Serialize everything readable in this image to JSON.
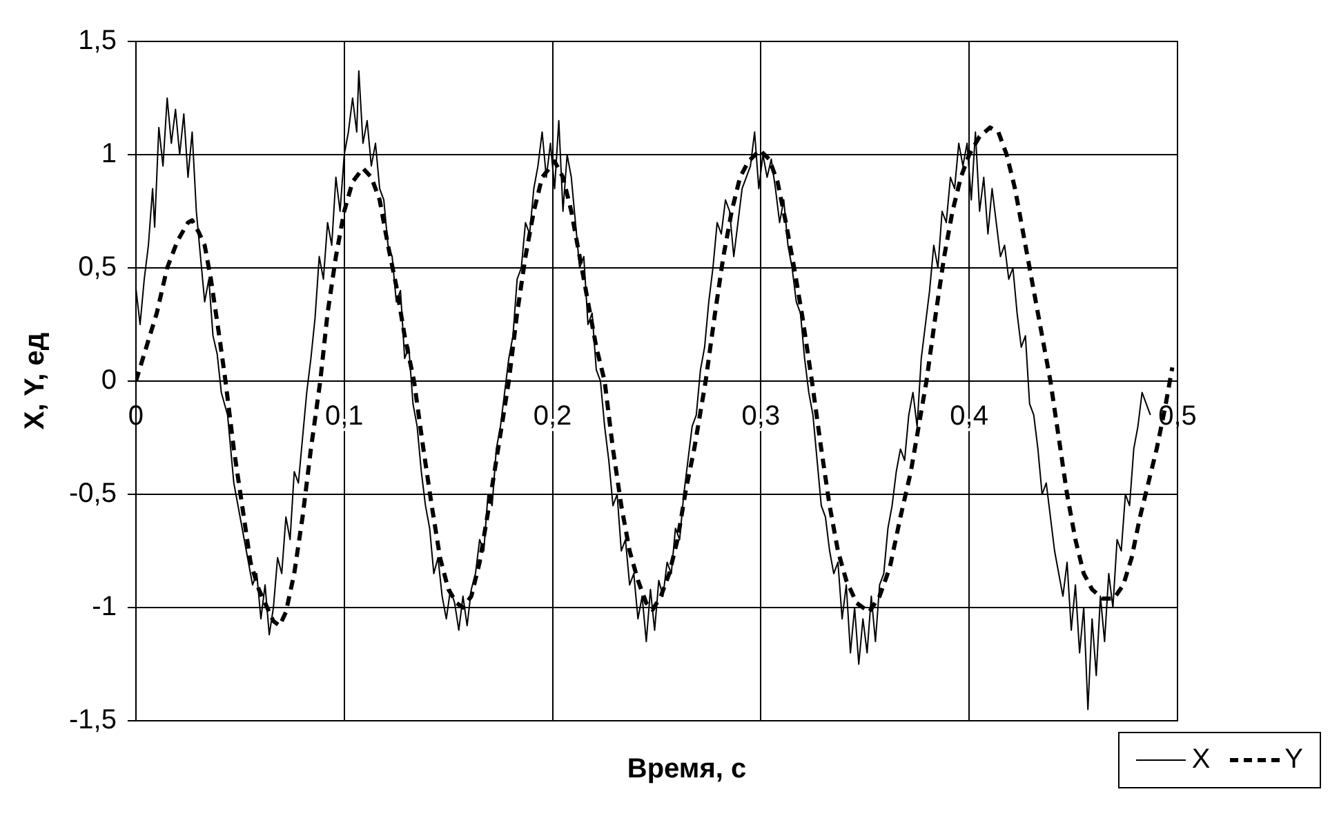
{
  "chart_data": {
    "type": "line",
    "xlabel": "Время, с",
    "ylabel": "X, Y, ед",
    "xlim": [
      0,
      0.5
    ],
    "xticks": [
      0,
      {
        "value": 0.1,
        "label": "0,1"
      },
      {
        "value": 0.2,
        "label": "0,2"
      },
      {
        "value": 0.3,
        "label": "0,3"
      },
      {
        "value": 0.4,
        "label": "0,4"
      },
      {
        "value": 0.5,
        "label": "0,5"
      }
    ],
    "ylim": [
      -1.5,
      1.5
    ],
    "yticks": [
      {
        "value": -1.5,
        "label": "-1,5"
      },
      -1,
      {
        "value": -0.5,
        "label": "-0,5"
      },
      0,
      {
        "value": 0.5,
        "label": "0,5"
      },
      1,
      {
        "value": 1.5,
        "label": "1,5"
      }
    ],
    "grid": true,
    "legend": "bottom right",
    "marker": "none",
    "series": [
      {
        "name": "X",
        "color": "#000000",
        "line_style": "solid",
        "x": [
          0,
          0.002,
          0.004,
          0.006,
          0.008,
          0.009,
          0.011,
          0.013,
          0.015,
          0.017,
          0.019,
          0.021,
          0.023,
          0.025,
          0.027,
          0.029,
          0.031,
          0.033,
          0.035,
          0.037,
          0.039,
          0.041,
          0.044,
          0.047,
          0.05,
          0.053,
          0.056,
          0.058,
          0.06,
          0.062,
          0.064,
          0.066,
          0.068,
          0.07,
          0.072,
          0.074,
          0.076,
          0.078,
          0.08,
          0.082,
          0.084,
          0.086,
          0.088,
          0.09,
          0.092,
          0.094,
          0.096,
          0.098,
          0.1,
          0.102,
          0.104,
          0.106,
          0.107,
          0.109,
          0.111,
          0.113,
          0.115,
          0.117,
          0.119,
          0.121,
          0.123,
          0.125,
          0.127,
          0.129,
          0.131,
          0.133,
          0.135,
          0.137,
          0.139,
          0.141,
          0.143,
          0.145,
          0.147,
          0.149,
          0.151,
          0.153,
          0.155,
          0.157,
          0.159,
          0.161,
          0.163,
          0.165,
          0.167,
          0.169,
          0.171,
          0.173,
          0.175,
          0.177,
          0.179,
          0.181,
          0.183,
          0.185,
          0.187,
          0.189,
          0.191,
          0.193,
          0.195,
          0.197,
          0.199,
          0.201,
          0.203,
          0.205,
          0.207,
          0.209,
          0.211,
          0.213,
          0.215,
          0.217,
          0.219,
          0.221,
          0.223,
          0.225,
          0.227,
          0.229,
          0.231,
          0.233,
          0.235,
          0.237,
          0.239,
          0.241,
          0.243,
          0.245,
          0.247,
          0.249,
          0.251,
          0.253,
          0.255,
          0.257,
          0.259,
          0.261,
          0.263,
          0.265,
          0.267,
          0.269,
          0.271,
          0.273,
          0.275,
          0.277,
          0.279,
          0.281,
          0.283,
          0.285,
          0.287,
          0.289,
          0.291,
          0.293,
          0.295,
          0.297,
          0.299,
          0.301,
          0.303,
          0.305,
          0.307,
          0.309,
          0.311,
          0.313,
          0.315,
          0.317,
          0.319,
          0.321,
          0.323,
          0.325,
          0.327,
          0.329,
          0.331,
          0.333,
          0.335,
          0.337,
          0.339,
          0.341,
          0.343,
          0.345,
          0.347,
          0.349,
          0.351,
          0.353,
          0.355,
          0.357,
          0.359,
          0.361,
          0.363,
          0.365,
          0.367,
          0.369,
          0.371,
          0.373,
          0.375,
          0.377,
          0.379,
          0.381,
          0.383,
          0.385,
          0.387,
          0.389,
          0.391,
          0.393,
          0.395,
          0.397,
          0.399,
          0.401,
          0.403,
          0.405,
          0.407,
          0.409,
          0.411,
          0.413,
          0.415,
          0.417,
          0.419,
          0.421,
          0.423,
          0.425,
          0.427,
          0.429,
          0.431,
          0.433,
          0.435,
          0.437,
          0.439,
          0.441,
          0.443,
          0.445,
          0.447,
          0.449,
          0.451,
          0.453,
          0.455,
          0.457,
          0.459,
          0.461,
          0.463,
          0.465,
          0.467,
          0.469,
          0.471,
          0.473,
          0.475,
          0.477,
          0.479,
          0.481,
          0.483,
          0.485,
          0.487
        ],
        "values": [
          0.41,
          0.25,
          0.45,
          0.6,
          0.85,
          0.68,
          1.12,
          0.95,
          1.25,
          1.05,
          1.2,
          1,
          1.18,
          0.9,
          1.1,
          0.75,
          0.55,
          0.35,
          0.45,
          0.2,
          0.12,
          -0.05,
          -0.15,
          -0.45,
          -0.6,
          -0.75,
          -0.9,
          -0.85,
          -1.05,
          -0.9,
          -1.12,
          -1,
          -0.78,
          -0.85,
          -0.6,
          -0.7,
          -0.4,
          -0.45,
          -0.25,
          -0.05,
          0.1,
          0.28,
          0.55,
          0.45,
          0.7,
          0.6,
          0.9,
          0.75,
          1,
          1.1,
          1.25,
          1.1,
          1.37,
          1.05,
          1.15,
          0.95,
          1.05,
          0.85,
          0.8,
          0.6,
          0.55,
          0.35,
          0.4,
          0.1,
          0.15,
          -0.1,
          -0.2,
          -0.4,
          -0.55,
          -0.65,
          -0.85,
          -0.78,
          -0.95,
          -1.05,
          -0.92,
          -0.98,
          -1.1,
          -0.95,
          -1.08,
          -0.92,
          -0.85,
          -0.7,
          -0.75,
          -0.5,
          -0.55,
          -0.3,
          -0.2,
          -0.05,
          0.1,
          0.2,
          0.45,
          0.5,
          0.7,
          0.65,
          0.85,
          0.95,
          1.1,
          0.9,
          1.05,
          0.85,
          1.15,
          0.75,
          1,
          0.9,
          0.7,
          0.5,
          0.55,
          0.25,
          0.3,
          0.05,
          0,
          -0.2,
          -0.35,
          -0.55,
          -0.5,
          -0.75,
          -0.7,
          -0.9,
          -0.85,
          -1.05,
          -0.95,
          -1.15,
          -0.92,
          -1.1,
          -0.88,
          -0.95,
          -0.8,
          -0.85,
          -0.65,
          -0.7,
          -0.5,
          -0.35,
          -0.2,
          -0.15,
          0.05,
          0.15,
          0.35,
          0.5,
          0.7,
          0.65,
          0.8,
          0.75,
          0.55,
          0.7,
          0.85,
          0.9,
          0.95,
          1.1,
          0.85,
          1,
          0.9,
          0.98,
          0.85,
          0.7,
          0.8,
          0.6,
          0.5,
          0.35,
          0.3,
          0.1,
          -0.05,
          -0.15,
          -0.35,
          -0.55,
          -0.6,
          -0.75,
          -0.85,
          -0.8,
          -1.05,
          -0.9,
          -1.2,
          -1,
          -1.25,
          -1.05,
          -1.2,
          -0.95,
          -1.15,
          -0.9,
          -0.85,
          -0.65,
          -0.55,
          -0.4,
          -0.3,
          -0.35,
          -0.15,
          -0.05,
          -0.2,
          0.1,
          0.25,
          0.4,
          0.6,
          0.5,
          0.75,
          0.7,
          0.9,
          0.85,
          1.05,
          0.95,
          1.05,
          0.8,
          1.1,
          0.75,
          0.9,
          0.65,
          0.85,
          0.7,
          0.55,
          0.6,
          0.45,
          0.5,
          0.3,
          0.15,
          0.2,
          -0.1,
          -0.15,
          -0.3,
          -0.5,
          -0.45,
          -0.6,
          -0.75,
          -0.85,
          -0.95,
          -0.8,
          -1.1,
          -0.9,
          -1.2,
          -1,
          -1.45,
          -1.05,
          -1.3,
          -0.95,
          -1.15,
          -0.85,
          -1,
          -0.7,
          -0.75,
          -0.5,
          -0.55,
          -0.3,
          -0.2,
          -0.05,
          -0.1,
          -0.15
        ]
      },
      {
        "name": "Y",
        "color": "#000000",
        "line_style": "dashed",
        "x": [
          0,
          0.005,
          0.01,
          0.015,
          0.02,
          0.025,
          0.027,
          0.03,
          0.033,
          0.036,
          0.04,
          0.043,
          0.047,
          0.051,
          0.055,
          0.059,
          0.063,
          0.066,
          0.069,
          0.072,
          0.076,
          0.08,
          0.084,
          0.0885,
          0.092,
          0.096,
          0.1,
          0.104,
          0.109,
          0.113,
          0.117,
          0.121,
          0.125,
          0.129,
          0.1335,
          0.138,
          0.142,
          0.146,
          0.15,
          0.154,
          0.157,
          0.161,
          0.165,
          0.169,
          0.173,
          0.179,
          0.183,
          0.187,
          0.191,
          0.195,
          0.201,
          0.205,
          0.209,
          0.213,
          0.217,
          0.221,
          0.225,
          0.229,
          0.233,
          0.237,
          0.241,
          0.245,
          0.248,
          0.252,
          0.256,
          0.26,
          0.264,
          0.268,
          0.2735,
          0.278,
          0.282,
          0.286,
          0.29,
          0.294,
          0.2995,
          0.304,
          0.308,
          0.312,
          0.316,
          0.32,
          0.3245,
          0.329,
          0.333,
          0.337,
          0.341,
          0.346,
          0.352,
          0.357,
          0.362,
          0.367,
          0.372,
          0.3795,
          0.384,
          0.388,
          0.392,
          0.396,
          0.4,
          0.405,
          0.41,
          0.414,
          0.418,
          0.422,
          0.426,
          0.43,
          0.434,
          0.439,
          0.443,
          0.447,
          0.451,
          0.455,
          0.459,
          0.464,
          0.4695,
          0.474,
          0.478,
          0.482,
          0.486,
          0.49,
          0.494,
          0.4975
        ],
        "values": [
          0,
          0.15,
          0.3,
          0.5,
          0.62,
          0.7,
          0.71,
          0.66,
          0.6,
          0.45,
          0.2,
          0,
          -0.3,
          -0.55,
          -0.8,
          -0.92,
          -1,
          -1.06,
          -1.08,
          -1.02,
          -0.85,
          -0.6,
          -0.3,
          0,
          0.3,
          0.55,
          0.75,
          0.88,
          0.94,
          0.9,
          0.8,
          0.6,
          0.42,
          0.2,
          0,
          -0.3,
          -0.55,
          -0.78,
          -0.92,
          -0.98,
          -1,
          -0.95,
          -0.8,
          -0.58,
          -0.35,
          0,
          0.3,
          0.55,
          0.75,
          0.9,
          0.97,
          0.9,
          0.75,
          0.55,
          0.35,
          0.15,
          0,
          -0.3,
          -0.55,
          -0.75,
          -0.88,
          -0.98,
          -1.01,
          -0.95,
          -0.85,
          -0.7,
          -0.48,
          -0.3,
          0,
          0.3,
          0.55,
          0.75,
          0.9,
          0.97,
          1.02,
          0.98,
          0.88,
          0.7,
          0.5,
          0.28,
          0,
          -0.3,
          -0.55,
          -0.75,
          -0.88,
          -0.98,
          -1.02,
          -0.95,
          -0.82,
          -0.6,
          -0.4,
          0,
          0.3,
          0.55,
          0.75,
          0.9,
          1,
          1.08,
          1.12,
          1.1,
          1,
          0.85,
          0.65,
          0.45,
          0.25,
          0,
          -0.25,
          -0.5,
          -0.7,
          -0.85,
          -0.92,
          -0.96,
          -0.96,
          -0.9,
          -0.78,
          -0.6,
          -0.45,
          -0.3,
          -0.12,
          0.06
        ]
      }
    ]
  }
}
